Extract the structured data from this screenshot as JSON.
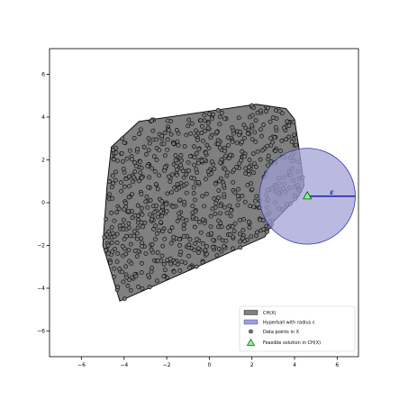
{
  "chart_data": {
    "type": "scatter",
    "title": "",
    "xlabel": "",
    "ylabel": "",
    "xlim": [
      -7.5,
      7.0
    ],
    "ylim": [
      -7.2,
      7.2
    ],
    "xticks": [
      -6,
      -4,
      -2,
      0,
      2,
      4,
      6
    ],
    "yticks": [
      -6,
      -4,
      -2,
      0,
      2,
      4,
      6
    ],
    "grid": false,
    "legend_position": "lower-right",
    "hull_polygon": [
      [
        -4.6,
        2.6
      ],
      [
        -3.3,
        3.8
      ],
      [
        2.2,
        4.6
      ],
      [
        3.6,
        4.4
      ],
      [
        4.0,
        3.9
      ],
      [
        4.2,
        2.6
      ],
      [
        4.45,
        0.8
      ],
      [
        4.2,
        0.3
      ],
      [
        3.0,
        -0.9
      ],
      [
        2.6,
        -1.6
      ],
      [
        -4.2,
        -4.6
      ],
      [
        -5.0,
        -2.0
      ],
      [
        -4.8,
        0.8
      ]
    ],
    "hyperball": {
      "center": [
        4.6,
        0.3
      ],
      "radius": 2.25
    },
    "feasible_solution": [
      4.6,
      0.3
    ],
    "radius_line_end": [
      6.85,
      0.3
    ],
    "epsilon_label": "ε",
    "data_points": {
      "count": 780,
      "seed": 7
    },
    "legend": [
      {
        "label": "CH(X)",
        "marker": "hull-patch"
      },
      {
        "label": "Hyperball with radius ε",
        "marker": "ball-patch"
      },
      {
        "label": "Data points in X",
        "marker": "point"
      },
      {
        "label": "Feasible solution in CH(X)",
        "marker": "triangle"
      }
    ],
    "colors": {
      "hull_fill": "#808080",
      "hull_edge": "#000000",
      "ball_fill": "#9fa0d6",
      "ball_edge": "#3333aa",
      "point_fill": "#7a7a7a",
      "point_edge": "#000000",
      "triangle_fill": "#90ee90",
      "triangle_edge": "#006400",
      "radius_line": "#1a1aa6"
    }
  }
}
